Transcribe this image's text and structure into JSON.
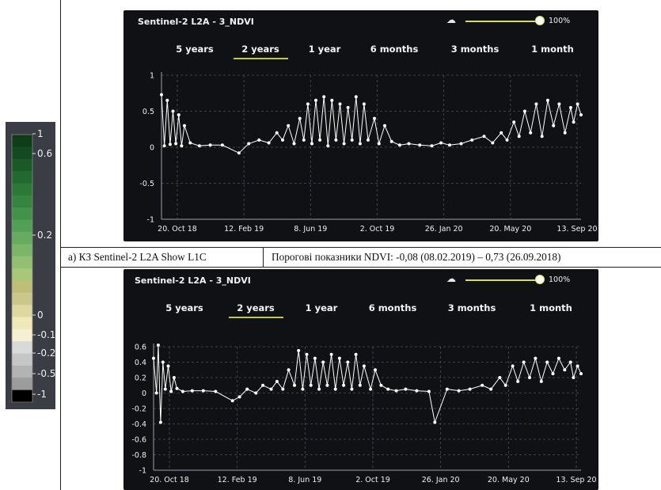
{
  "legend": {
    "labels": [
      "1",
      "0.6",
      "0.2",
      "0",
      "-0.1",
      "-0.2",
      "-0.5",
      "-1"
    ],
    "colors": [
      "#0e3d1a",
      "#134a20",
      "#1a5a27",
      "#22692f",
      "#2b7837",
      "#358540",
      "#42924a",
      "#52a055",
      "#66ab5f",
      "#7bb668",
      "#92c072",
      "#a8c779",
      "#bdbf78",
      "#cbc68a",
      "#ddd8a0",
      "#efe8bb",
      "#f5f0d4",
      "#d9d9d9",
      "#c6c6c6",
      "#b3b3b3",
      "#9c9c9c",
      "#000000"
    ]
  },
  "panel_top": {
    "title": "Sentinel-2 L2A - 3_NDVI",
    "opacity": "100%",
    "tabs": [
      "5 years",
      "2 years",
      "1 year",
      "6 months",
      "3 months",
      "1 month"
    ],
    "selected_tab": "2 years"
  },
  "panel_bottom": {
    "title": "Sentinel-2 L2A - 3_NDVI",
    "opacity": "100%",
    "tabs": [
      "5 years",
      "2 years",
      "1 year",
      "6 months",
      "3 months",
      "1 month"
    ],
    "selected_tab": "2 years"
  },
  "caption": {
    "left": "а) КЗ Sentinel-2 L2A Show L1C",
    "right": "Порогові показники NDVI: -0,08 (08.02.2019) – 0,73 (26.09.2018)"
  },
  "chart_data": [
    {
      "type": "line",
      "title": "Sentinel-2 L2A - 3_NDVI",
      "x_ticks": [
        "20. Oct 18",
        "12. Feb 19",
        "8. Jun 19",
        "2. Oct 19",
        "26. Jan 20",
        "20. May 20",
        "13. Sep 20"
      ],
      "y_ticks": [
        "1",
        "0.5",
        "0",
        "-0.5",
        "-1"
      ],
      "ylim": [
        -1,
        1
      ],
      "xlim": [
        "2018-09-26",
        "2020-09-26"
      ],
      "grid": true,
      "series": [
        {
          "x": [
            "2018-09-26",
            "2018-10-01",
            "2018-10-06",
            "2018-10-11",
            "2018-10-16",
            "2018-10-21",
            "2018-10-26",
            "2018-10-31",
            "2018-11-05",
            "2018-11-15",
            "2018-12-01",
            "2018-12-20",
            "2019-01-10",
            "2019-02-08",
            "2019-02-25",
            "2019-03-15",
            "2019-04-01",
            "2019-04-15",
            "2019-04-25",
            "2019-05-05",
            "2019-05-15",
            "2019-05-25",
            "2019-06-01",
            "2019-06-08",
            "2019-06-15",
            "2019-06-22",
            "2019-06-29",
            "2019-07-06",
            "2019-07-13",
            "2019-07-20",
            "2019-07-27",
            "2019-08-03",
            "2019-08-10",
            "2019-08-17",
            "2019-08-24",
            "2019-08-31",
            "2019-09-07",
            "2019-09-14",
            "2019-09-21",
            "2019-10-02",
            "2019-10-10",
            "2019-10-20",
            "2019-11-01",
            "2019-11-15",
            "2019-12-01",
            "2019-12-20",
            "2020-01-10",
            "2020-01-26",
            "2020-02-10",
            "2020-03-01",
            "2020-03-20",
            "2020-04-10",
            "2020-04-25",
            "2020-05-10",
            "2020-05-20",
            "2020-06-01",
            "2020-06-10",
            "2020-06-20",
            "2020-06-30",
            "2020-07-10",
            "2020-07-20",
            "2020-07-30",
            "2020-08-09",
            "2020-08-19",
            "2020-08-29",
            "2020-09-08",
            "2020-09-13",
            "2020-09-20",
            "2020-09-26"
          ],
          "y": [
            0.73,
            0.02,
            0.65,
            0.04,
            0.5,
            0.05,
            0.45,
            0.02,
            0.3,
            0.06,
            0.02,
            0.03,
            0.03,
            -0.08,
            0.05,
            0.1,
            0.06,
            0.2,
            0.1,
            0.3,
            0.05,
            0.4,
            0.1,
            0.6,
            0.05,
            0.65,
            0.1,
            0.7,
            0.02,
            0.65,
            0.1,
            0.6,
            0.05,
            0.55,
            0.1,
            0.7,
            0.05,
            0.6,
            0.1,
            0.4,
            0.05,
            0.3,
            0.08,
            0.03,
            0.05,
            0.03,
            0.02,
            0.06,
            0.03,
            0.05,
            0.1,
            0.15,
            0.06,
            0.2,
            0.1,
            0.35,
            0.15,
            0.5,
            0.2,
            0.6,
            0.15,
            0.65,
            0.3,
            0.6,
            0.2,
            0.55,
            0.35,
            0.6,
            0.45
          ]
        }
      ]
    },
    {
      "type": "line",
      "title": "Sentinel-2 L2A - 3_NDVI",
      "x_ticks": [
        "20. Oct 18",
        "12. Feb 19",
        "8. Jun 19",
        "2. Oct 19",
        "26. Jan 20",
        "20. May 20",
        "13. Sep 20"
      ],
      "y_ticks": [
        "0.6",
        "0.4",
        "0.2",
        "0",
        "-0.2",
        "-0.4",
        "-0.6",
        "-0.8",
        "-1"
      ],
      "ylim": [
        -1,
        0.6
      ],
      "xlim": [
        "2018-09-26",
        "2020-09-26"
      ],
      "grid": true,
      "series": [
        {
          "x": [
            "2018-09-26",
            "2018-10-01",
            "2018-10-04",
            "2018-10-08",
            "2018-10-12",
            "2018-10-16",
            "2018-10-21",
            "2018-10-26",
            "2018-10-31",
            "2018-11-05",
            "2018-11-15",
            "2018-12-01",
            "2018-12-20",
            "2019-01-10",
            "2019-02-08",
            "2019-02-20",
            "2019-03-05",
            "2019-03-20",
            "2019-04-01",
            "2019-04-15",
            "2019-04-25",
            "2019-05-05",
            "2019-05-15",
            "2019-05-25",
            "2019-06-01",
            "2019-06-08",
            "2019-06-15",
            "2019-06-22",
            "2019-06-29",
            "2019-07-06",
            "2019-07-13",
            "2019-07-20",
            "2019-07-27",
            "2019-08-03",
            "2019-08-10",
            "2019-08-17",
            "2019-08-24",
            "2019-08-31",
            "2019-09-07",
            "2019-09-14",
            "2019-09-21",
            "2019-10-02",
            "2019-10-10",
            "2019-10-20",
            "2019-11-01",
            "2019-11-15",
            "2019-12-01",
            "2019-12-20",
            "2020-01-10",
            "2020-01-20",
            "2020-02-10",
            "2020-03-01",
            "2020-03-20",
            "2020-04-10",
            "2020-04-25",
            "2020-05-10",
            "2020-05-20",
            "2020-06-01",
            "2020-06-10",
            "2020-06-20",
            "2020-06-30",
            "2020-07-10",
            "2020-07-20",
            "2020-07-30",
            "2020-08-09",
            "2020-08-19",
            "2020-08-29",
            "2020-09-08",
            "2020-09-13",
            "2020-09-20",
            "2020-09-26"
          ],
          "y": [
            0.45,
            0.0,
            0.62,
            -0.38,
            0.4,
            0.05,
            0.35,
            0.02,
            0.2,
            0.06,
            0.02,
            0.03,
            0.03,
            0.02,
            -0.1,
            -0.05,
            0.05,
            0.0,
            0.1,
            0.05,
            0.15,
            0.05,
            0.3,
            0.1,
            0.55,
            0.05,
            0.5,
            0.1,
            0.45,
            0.05,
            0.4,
            0.1,
            0.5,
            0.05,
            0.45,
            0.1,
            0.4,
            0.05,
            0.5,
            0.1,
            0.35,
            0.05,
            0.3,
            0.1,
            0.05,
            0.03,
            0.05,
            0.03,
            0.02,
            -0.38,
            0.05,
            0.03,
            0.05,
            0.1,
            0.05,
            0.2,
            0.1,
            0.35,
            0.15,
            0.4,
            0.2,
            0.45,
            0.15,
            0.4,
            0.25,
            0.45,
            0.3,
            0.4,
            0.2,
            0.35,
            0.25
          ]
        }
      ]
    }
  ]
}
